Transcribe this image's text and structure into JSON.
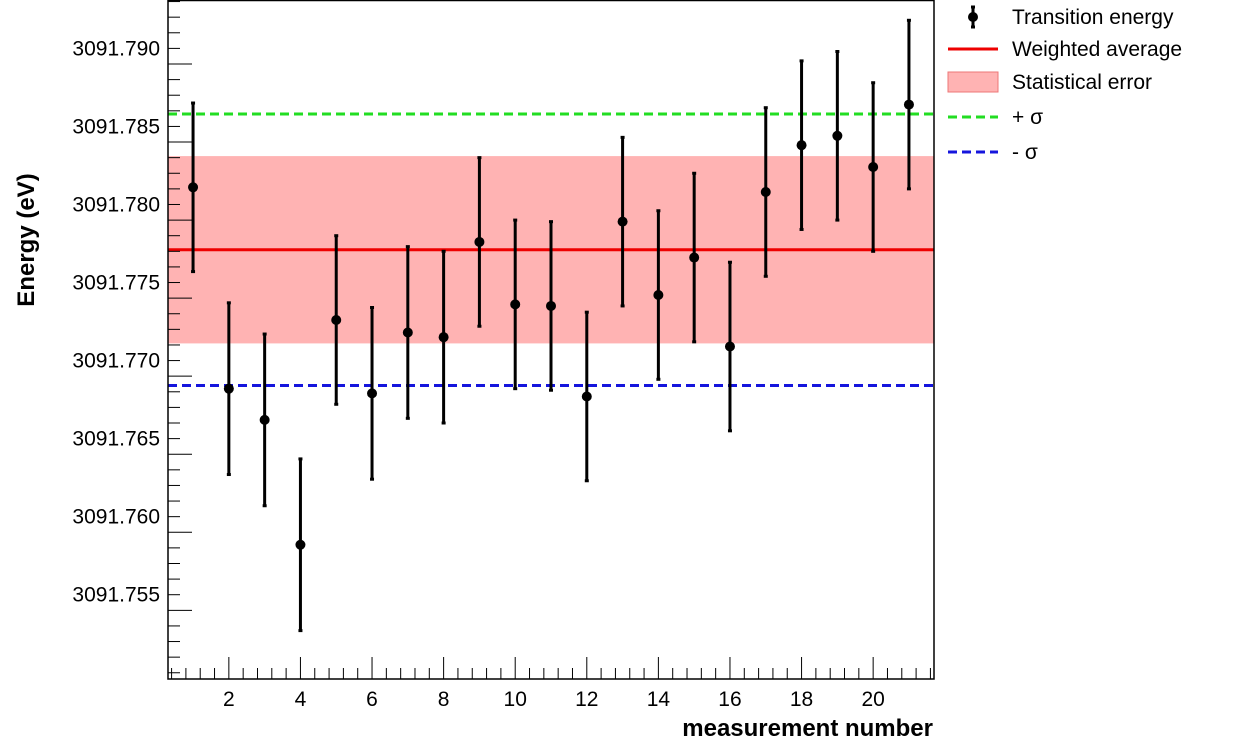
{
  "chart_data": {
    "type": "scatter",
    "xlabel": "measurement number",
    "ylabel": "Energy (eV)",
    "xlim": [
      0.3,
      21.7
    ],
    "ylim": [
      3091.7496,
      3091.7931
    ],
    "x_ticks": [
      2,
      4,
      6,
      8,
      10,
      12,
      14,
      16,
      18,
      20
    ],
    "y_ticks": [
      "3091.755",
      "3091.760",
      "3091.765",
      "3091.770",
      "3091.775",
      "3091.780",
      "3091.785",
      "3091.790"
    ],
    "legend_position": "top-right, outside plot",
    "series": [
      {
        "name": "Transition energy",
        "kind": "points-with-errorbars",
        "color": "#000000",
        "points": [
          {
            "x": 1,
            "y": 3091.7811,
            "err": 0.0054
          },
          {
            "x": 2,
            "y": 3091.7682,
            "err": 0.0055
          },
          {
            "x": 3,
            "y": 3091.7662,
            "err": 0.0055
          },
          {
            "x": 4,
            "y": 3091.7582,
            "err": 0.0055
          },
          {
            "x": 5,
            "y": 3091.7726,
            "err": 0.0054
          },
          {
            "x": 6,
            "y": 3091.7679,
            "err": 0.0055
          },
          {
            "x": 7,
            "y": 3091.7718,
            "err": 0.0055
          },
          {
            "x": 8,
            "y": 3091.7715,
            "err": 0.0055
          },
          {
            "x": 9,
            "y": 3091.7776,
            "err": 0.0054
          },
          {
            "x": 10,
            "y": 3091.7736,
            "err": 0.0054
          },
          {
            "x": 11,
            "y": 3091.7735,
            "err": 0.0054
          },
          {
            "x": 12,
            "y": 3091.7677,
            "err": 0.0054
          },
          {
            "x": 13,
            "y": 3091.7789,
            "err": 0.0054
          },
          {
            "x": 14,
            "y": 3091.7742,
            "err": 0.0054
          },
          {
            "x": 15,
            "y": 3091.7766,
            "err": 0.0054
          },
          {
            "x": 16,
            "y": 3091.7709,
            "err": 0.0054
          },
          {
            "x": 17,
            "y": 3091.7808,
            "err": 0.0054
          },
          {
            "x": 18,
            "y": 3091.7838,
            "err": 0.0054
          },
          {
            "x": 19,
            "y": 3091.7844,
            "err": 0.0054
          },
          {
            "x": 20,
            "y": 3091.7824,
            "err": 0.0054
          },
          {
            "x": 21,
            "y": 3091.7864,
            "err": 0.0054
          }
        ]
      },
      {
        "name": "Weighted average",
        "kind": "hline",
        "y": 3091.7771,
        "color": "#ee0000"
      },
      {
        "name": "Statistical error",
        "kind": "band",
        "y_low": 3091.7711,
        "y_high": 3091.7831,
        "color": "#ffb3b3"
      },
      {
        "name": "+ σ",
        "kind": "hline-dashed",
        "y": 3091.7858,
        "color": "#22dd22"
      },
      {
        "name": "- σ",
        "kind": "hline-dashed",
        "y": 3091.7684,
        "color": "#1515dd"
      }
    ]
  }
}
